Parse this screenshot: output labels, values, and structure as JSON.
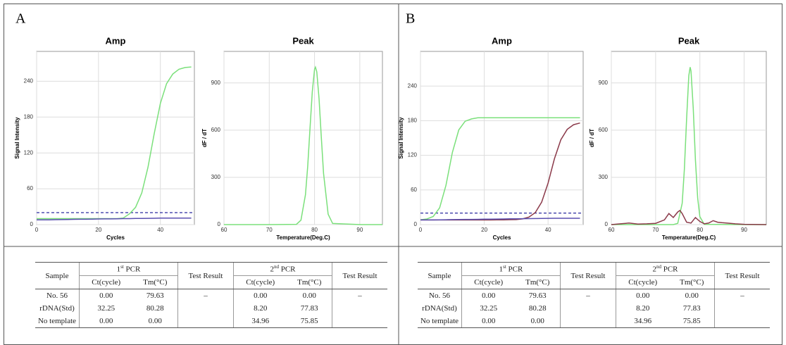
{
  "panels": [
    "A",
    "B"
  ],
  "chart_data": [
    {
      "type": "line",
      "title": "Amp",
      "x_label": "Cycles",
      "y_label": "Signal Intensity",
      "xlim": [
        0,
        51
      ],
      "ylim": [
        0,
        290
      ],
      "xticks": [
        0,
        20,
        40
      ],
      "yticks": [
        0,
        60,
        120,
        180,
        240
      ],
      "grid": true,
      "threshold": 20,
      "threshold_color": "#2a2aa0",
      "x": [
        0,
        2,
        4,
        6,
        8,
        10,
        12,
        14,
        16,
        18,
        20,
        22,
        24,
        26,
        28,
        30,
        32,
        34,
        36,
        38,
        40,
        42,
        44,
        46,
        48,
        50
      ],
      "series": [
        {
          "color": "#7be07b",
          "values": [
            10,
            10,
            10,
            10,
            10,
            10,
            10,
            10,
            10,
            10,
            10,
            10,
            10,
            10,
            11,
            18,
            29,
            53,
            96,
            152,
            203,
            236,
            252,
            260,
            263,
            264
          ]
        },
        {
          "color": "#5a4fb0",
          "values": [
            8,
            8,
            8,
            8.2,
            8.4,
            8.6,
            8.8,
            9,
            9,
            9.2,
            9.4,
            9.5,
            9.6,
            9.8,
            10,
            10,
            10.2,
            10.4,
            10.5,
            10.6,
            10.8,
            11,
            11,
            11,
            11,
            11
          ]
        }
      ]
    },
    {
      "type": "line",
      "title": "Peak",
      "x_label": "Temperature(Deg.C)",
      "y_label": "dF / dT",
      "xlim": [
        60,
        95
      ],
      "ylim": [
        0,
        1100
      ],
      "xticks": [
        60,
        70,
        80,
        90
      ],
      "yticks": [
        0,
        300,
        600,
        900
      ],
      "grid": true,
      "series": [
        {
          "color": "#7be07b",
          "x": [
            60,
            70,
            76,
            77,
            78,
            78.5,
            79,
            79.5,
            80,
            80.2,
            80.5,
            81,
            81.5,
            82,
            83,
            84,
            90,
            95
          ],
          "values": [
            0,
            0,
            2,
            28,
            190,
            370,
            607,
            844,
            986,
            1000,
            970,
            800,
            556,
            325,
            66,
            7,
            0,
            0
          ]
        }
      ]
    },
    {
      "type": "line",
      "title": "Amp",
      "x_label": "Cycles",
      "y_label": "Signal Intensity",
      "xlim": [
        0,
        51
      ],
      "ylim": [
        0,
        300
      ],
      "xticks": [
        0,
        20,
        40
      ],
      "yticks": [
        0,
        60,
        120,
        180,
        240
      ],
      "grid": true,
      "threshold": 20,
      "threshold_color": "#2a2aa0",
      "x": [
        0,
        2,
        4,
        6,
        8,
        10,
        12,
        14,
        16,
        18,
        20,
        22,
        24,
        26,
        28,
        30,
        32,
        34,
        36,
        38,
        40,
        42,
        44,
        46,
        48,
        50
      ],
      "series": [
        {
          "color": "#7be07b",
          "values": [
            8.4,
            9.7,
            14,
            29,
            68,
            125,
            164,
            179,
            183,
            185,
            185,
            185,
            185,
            185,
            185,
            185,
            185,
            185,
            185,
            185,
            185,
            185,
            185,
            185,
            185,
            185
          ]
        },
        {
          "color": "#8b3a4a",
          "values": [
            8,
            8,
            8,
            8,
            8,
            8,
            8,
            8,
            8,
            8,
            8,
            8,
            8.2,
            8.3,
            8.5,
            8.7,
            9.9,
            13,
            21,
            39,
            72,
            114,
            147,
            165,
            173,
            176
          ]
        },
        {
          "color": "#5a4fb0",
          "values": [
            8,
            8,
            8,
            8.2,
            8.4,
            8.6,
            8.8,
            9,
            9,
            9.2,
            9.4,
            9.5,
            9.6,
            9.8,
            10,
            10,
            10.2,
            10.4,
            10.5,
            10.6,
            10.8,
            11,
            11,
            11,
            11,
            11
          ]
        }
      ]
    },
    {
      "type": "line",
      "title": "Peak",
      "x_label": "Temperature(Deg.C)",
      "y_label": "dF / dT",
      "xlim": [
        60,
        95
      ],
      "ylim": [
        0,
        1100
      ],
      "xticks": [
        60,
        70,
        80,
        90
      ],
      "yticks": [
        0,
        300,
        600,
        900
      ],
      "grid": true,
      "series": [
        {
          "color": "#7be07b",
          "x": [
            60,
            70,
            74,
            75,
            76,
            76.5,
            77,
            77.5,
            77.8,
            78,
            78.5,
            79,
            79.5,
            80,
            81,
            90,
            95
          ],
          "values": [
            0,
            0,
            0,
            8,
            135,
            352,
            674,
            946,
            1000,
            976,
            739,
            411,
            168,
            50,
            2,
            0,
            0
          ]
        },
        {
          "color": "#8b3a4a",
          "x": [
            60,
            62,
            64,
            66,
            68,
            70,
            72,
            73,
            74,
            75,
            75.5,
            76,
            77,
            78,
            79,
            80,
            81,
            82,
            83,
            84,
            85,
            86,
            88,
            90,
            95
          ],
          "values": [
            0,
            5,
            10,
            3,
            5,
            8,
            30,
            70,
            45,
            80,
            90,
            70,
            15,
            10,
            45,
            20,
            5,
            10,
            25,
            15,
            12,
            10,
            5,
            2,
            0
          ]
        }
      ]
    }
  ],
  "tables": [
    {
      "sample": "Sample",
      "pcr1": {
        "n": "1",
        "sup": "st",
        "text": " PCR"
      },
      "pcr2": {
        "n": "2",
        "sup": "nd",
        "text": " PCR"
      },
      "result_head1": "Test Result",
      "result_head2": "Test Result",
      "ct1": "Ct(cycle)",
      "tm1": "Tm(°C)",
      "ct2": "Ct(cycle)",
      "tm2": "Tm(°C)",
      "result1": "–",
      "result2": "–",
      "rows": [
        [
          "No. 56",
          "0.00",
          "79.63",
          "0.00",
          "0.00"
        ],
        [
          "rDNA(Std)",
          "32.25",
          "80.28",
          "8.20",
          "77.83"
        ],
        [
          "No template",
          "0.00",
          "0.00",
          "34.96",
          "75.85"
        ]
      ]
    },
    {
      "sample": "Sample",
      "pcr1": {
        "n": "1",
        "sup": "st",
        "text": " PCR"
      },
      "pcr2": {
        "n": "2",
        "sup": "nd",
        "text": " PCR"
      },
      "result_head1": "Test Result",
      "result_head2": "Test Result",
      "ct1": "Ct(cycle)",
      "tm1": "Tm(°C)",
      "ct2": "Ct(cycle)",
      "tm2": "Tm(°C)",
      "result1": "–",
      "result2": "–",
      "rows": [
        [
          "No. 56",
          "0.00",
          "79.63",
          "0.00",
          "0.00"
        ],
        [
          "rDNA(Std)",
          "32.25",
          "80.28",
          "8.20",
          "77.83"
        ],
        [
          "No template",
          "0.00",
          "0.00",
          "34.96",
          "75.85"
        ]
      ]
    }
  ]
}
